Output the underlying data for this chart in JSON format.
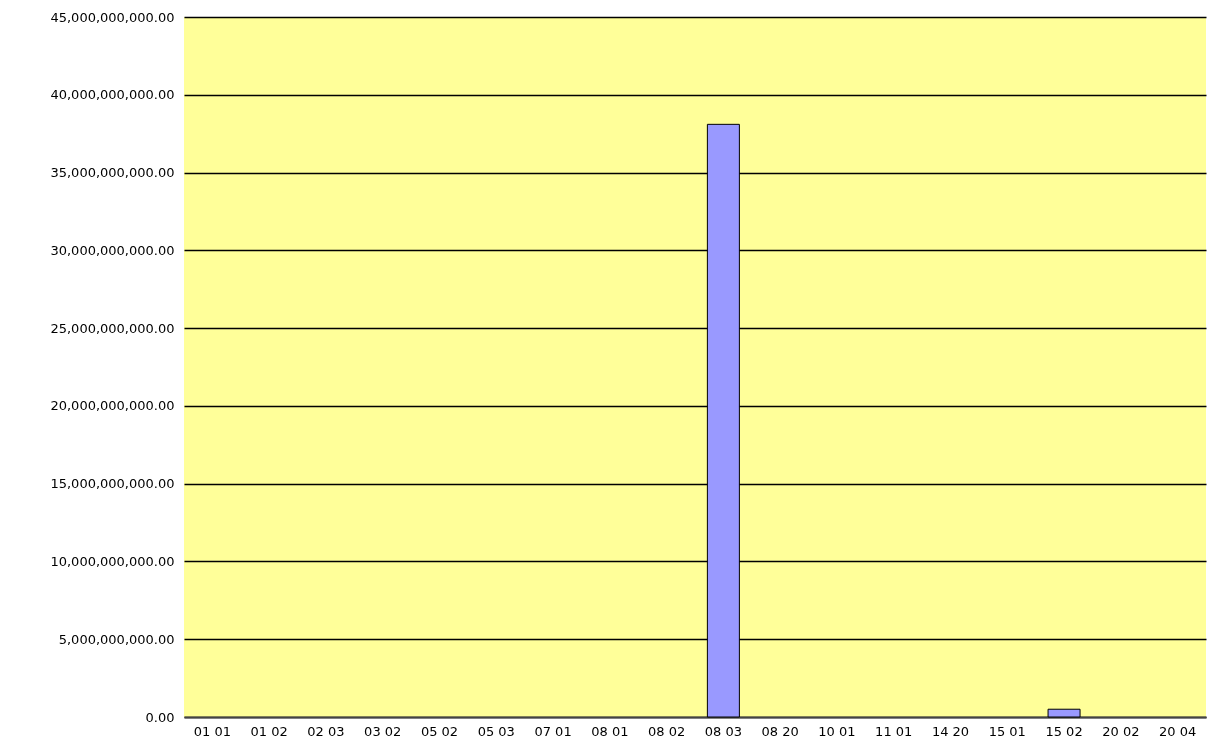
{
  "chart_data": {
    "type": "bar",
    "categories": [
      "01 01",
      "01 02",
      "02 03",
      "03 02",
      "05 02",
      "05 03",
      "07 01",
      "08 01",
      "08 02",
      "08 03",
      "08 20",
      "10 01",
      "11 01",
      "14 20",
      "15 01",
      "15 02",
      "20 02",
      "20 04"
    ],
    "values": [
      0,
      0,
      0,
      0,
      0,
      0,
      0,
      0,
      0,
      38100000000,
      0,
      0,
      0,
      0,
      0,
      500000000,
      0,
      0
    ],
    "color": "#9999ff",
    "ylim": [
      0,
      45000000000
    ],
    "yticks": [
      {
        "value": 0,
        "label": "0.00"
      },
      {
        "value": 5000000000,
        "label": "5,000,000,000.00"
      },
      {
        "value": 10000000000,
        "label": "10,000,000,000.00"
      },
      {
        "value": 15000000000,
        "label": "15,000,000,000.00"
      },
      {
        "value": 20000000000,
        "label": "20,000,000,000.00"
      },
      {
        "value": 25000000000,
        "label": "25,000,000,000.00"
      },
      {
        "value": 30000000000,
        "label": "30,000,000,000.00"
      },
      {
        "value": 35000000000,
        "label": "35,000,000,000.00"
      },
      {
        "value": 40000000000,
        "label": "40,000,000,000.00"
      },
      {
        "value": 45000000000,
        "label": "45,000,000,000.00"
      }
    ],
    "grid": "y"
  }
}
